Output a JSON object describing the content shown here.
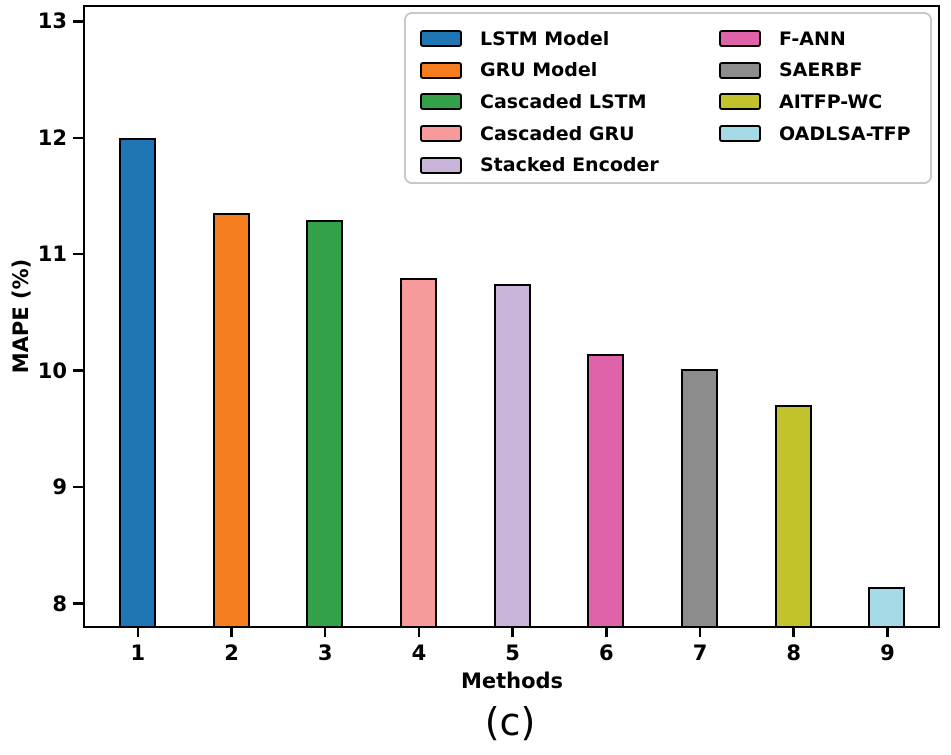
{
  "chart_data": {
    "type": "bar",
    "title": "",
    "xlabel": "Methods",
    "ylabel": "MAPE (%)",
    "caption": "(c)",
    "categories": [
      "1",
      "2",
      "3",
      "4",
      "5",
      "6",
      "7",
      "8",
      "9"
    ],
    "yticks": [
      8,
      9,
      10,
      11,
      12,
      13
    ],
    "ylim": [
      7.79,
      13.14
    ],
    "grid": false,
    "legend_position": "upper right",
    "legend_columns": 2,
    "legend_rows_per_column": 5,
    "bar_edge_color": "#000000",
    "bars": [
      {
        "method": "1",
        "label": "LSTM Model",
        "value": 12.0,
        "color": "#2076b4"
      },
      {
        "method": "2",
        "label": "GRU Model",
        "value": 11.36,
        "color": "#f57d1d"
      },
      {
        "method": "3",
        "label": "Cascaded LSTM",
        "value": 11.3,
        "color": "#32a14a"
      },
      {
        "method": "4",
        "label": "Cascaded GRU",
        "value": 10.8,
        "color": "#f79a9b"
      },
      {
        "method": "5",
        "label": "Stacked Encoder",
        "value": 10.75,
        "color": "#c9b4d9"
      },
      {
        "method": "6",
        "label": "F-ANN",
        "value": 10.15,
        "color": "#df63a8"
      },
      {
        "method": "7",
        "label": "SAERBF",
        "value": 10.02,
        "color": "#8c8c8c"
      },
      {
        "method": "8",
        "label": "AITFP-WC",
        "value": 9.71,
        "color": "#c1c22c"
      },
      {
        "method": "9",
        "label": "OADLSA-TFP",
        "value": 8.15,
        "color": "#a5dbe7"
      }
    ]
  }
}
